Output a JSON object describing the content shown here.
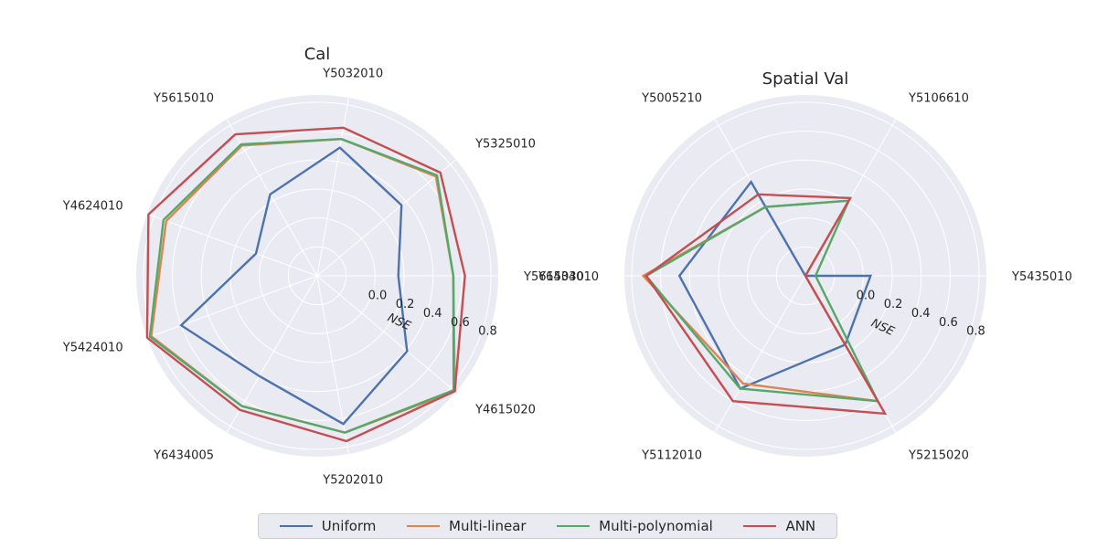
{
  "colors": {
    "background": "#eaeaf2",
    "grid": "#ffffff",
    "Uniform": "#4c72b0",
    "Multi-linear": "#dd8452",
    "Multi-polynomial": "#55a868",
    "ANN": "#c44e52"
  },
  "legend": {
    "items": [
      {
        "label": "Uniform",
        "color": "#4c72b0"
      },
      {
        "label": "Multi-linear",
        "color": "#dd8452"
      },
      {
        "label": "Multi-polynomial",
        "color": "#55a868"
      },
      {
        "label": "ANN",
        "color": "#c44e52"
      }
    ]
  },
  "chart_data": [
    {
      "type": "radar",
      "title": "Cal",
      "radial_label": "NSE",
      "rlim": [
        -0.4,
        0.85
      ],
      "rticks": [
        "0.0",
        "0.2",
        "0.4",
        "0.6",
        "0.8"
      ],
      "grid": true,
      "categories": [
        "Y5615030",
        "Y5325010",
        "Y5032010",
        "Y5615010",
        "Y4624010",
        "Y5424010",
        "Y6434005",
        "Y5202010",
        "Y4615020"
      ],
      "series": [
        {
          "name": "Uniform",
          "values": [
            0.16,
            0.36,
            0.5,
            0.25,
            0.05,
            0.6,
            0.4,
            0.64,
            0.41
          ]
        },
        {
          "name": "Multi-linear",
          "values": [
            0.54,
            0.67,
            0.56,
            0.64,
            0.71,
            0.82,
            0.64,
            0.7,
            0.84
          ]
        },
        {
          "name": "Multi-polynomial",
          "values": [
            0.54,
            0.68,
            0.56,
            0.65,
            0.73,
            0.83,
            0.64,
            0.7,
            0.83
          ]
        },
        {
          "name": "ANN",
          "values": [
            0.62,
            0.71,
            0.64,
            0.73,
            0.84,
            0.85,
            0.67,
            0.76,
            0.84
          ]
        }
      ]
    },
    {
      "type": "radar",
      "title": "Spatial Val",
      "radial_label": "NSE",
      "rlim": [
        -0.4,
        0.85
      ],
      "rticks": [
        "0.0",
        "0.2",
        "0.4",
        "0.6",
        "0.8"
      ],
      "grid": true,
      "categories": [
        "Y5435010",
        "Y5106610",
        "Y5005210",
        "Y6434010",
        "Y5112010",
        "Y5215020"
      ],
      "series": [
        {
          "name": "Uniform",
          "values": [
            0.05,
            -0.4,
            0.35,
            0.47,
            0.5,
            0.15
          ]
        },
        {
          "name": "Multi-linear",
          "values": [
            -0.4,
            0.2,
            0.15,
            0.72,
            0.46,
            0.6
          ]
        },
        {
          "name": "Multi-polynomial",
          "values": [
            -0.33,
            0.2,
            0.15,
            0.7,
            0.5,
            0.6
          ]
        },
        {
          "name": "ANN",
          "values": [
            -0.4,
            0.22,
            0.25,
            0.7,
            0.6,
            0.7
          ]
        }
      ]
    }
  ]
}
